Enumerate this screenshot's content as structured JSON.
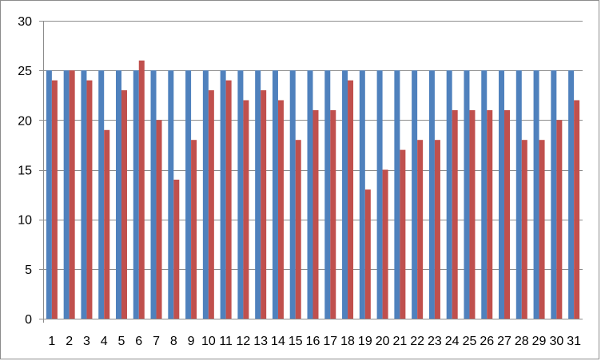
{
  "chart_data": {
    "type": "bar",
    "title": "",
    "xlabel": "",
    "ylabel": "",
    "categories": [
      "1",
      "2",
      "3",
      "4",
      "5",
      "6",
      "7",
      "8",
      "9",
      "10",
      "11",
      "12",
      "13",
      "14",
      "15",
      "16",
      "17",
      "18",
      "19",
      "20",
      "21",
      "22",
      "23",
      "24",
      "25",
      "26",
      "27",
      "28",
      "29",
      "30",
      "31"
    ],
    "series": [
      {
        "color": "#4f81bd",
        "values": [
          25,
          25,
          25,
          25,
          25,
          25,
          25,
          25,
          25,
          25,
          25,
          25,
          25,
          25,
          25,
          25,
          25,
          25,
          25,
          25,
          25,
          25,
          25,
          25,
          25,
          25,
          25,
          25,
          25,
          25,
          25
        ]
      },
      {
        "color": "#c0504d",
        "values": [
          24,
          25,
          24,
          19,
          23,
          26,
          20,
          14,
          18,
          23,
          24,
          22,
          23,
          22,
          18,
          21,
          21,
          24,
          13,
          15,
          17,
          18,
          18,
          21,
          21,
          21,
          21,
          18,
          18,
          20,
          22
        ]
      }
    ],
    "ylim": [
      0,
      30
    ],
    "yticks": [
      0,
      5,
      10,
      15,
      20,
      25,
      30
    ],
    "grid": true,
    "legend": "none"
  }
}
